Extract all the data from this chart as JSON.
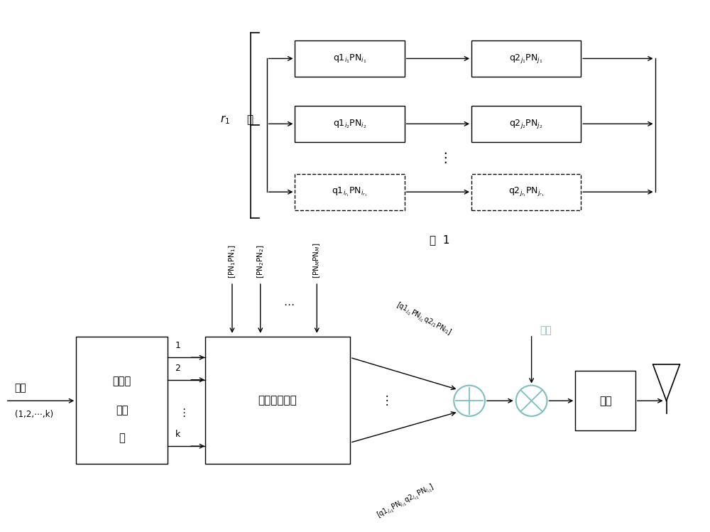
{
  "bg_color": "#ffffff",
  "line_color": "#000000",
  "teal_color": "#7fbfbf",
  "fig1_label": "图  1",
  "top_rows": [
    {
      "left": "q1₁ᵢ₁PNᵢ₁",
      "right": "q2ⱼ₁PNⱼ₁",
      "dashed": false
    },
    {
      "left": "q1ᵢ₂PNᵢ₂",
      "right": "q2ⱼ₂PNⱼ₂",
      "dashed": false
    },
    {
      "left": "q1ᵢr₁PNᵢr₁",
      "right": "q2ⱼr₁PNⱼr₁",
      "dashed": true
    }
  ]
}
